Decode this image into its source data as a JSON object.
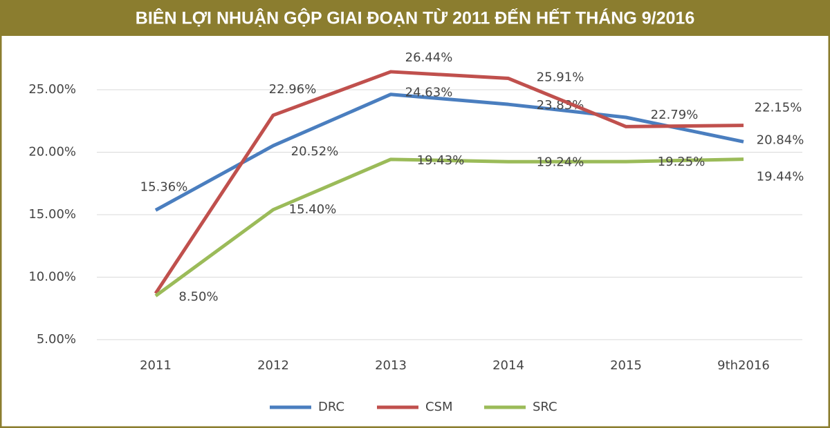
{
  "chart_data": {
    "type": "line",
    "title": "BIÊN LỢI NHUẬN GỘP GIAI ĐOẠN TỪ 2011 ĐẾN HẾT THÁNG 9/2016",
    "categories": [
      "2011",
      "2012",
      "2013",
      "2014",
      "2015",
      "9th2016"
    ],
    "series": [
      {
        "name": "DRC",
        "color": "#4a7ebf",
        "values": [
          15.36,
          20.52,
          24.63,
          23.83,
          22.79,
          20.84
        ],
        "value_labels": [
          "15.36%",
          "20.52%",
          "24.63%",
          "23.83%",
          "22.79%",
          "20.84%"
        ]
      },
      {
        "name": "CSM",
        "color": "#c0504d",
        "values": [
          8.7,
          22.96,
          26.44,
          25.91,
          22.05,
          22.15
        ],
        "value_labels": [
          null,
          "22.96%",
          "26.44%",
          "25.91%",
          null,
          "22.15%"
        ]
      },
      {
        "name": "SRC",
        "color": "#9bbb59",
        "values": [
          8.5,
          15.4,
          19.43,
          19.24,
          19.25,
          19.44
        ],
        "value_labels": [
          "8.50%",
          "15.40%",
          "19.43%",
          "19.24%",
          "19.25%",
          "19.44%"
        ]
      }
    ],
    "ylim": [
      5,
      29
    ],
    "yticks": [
      {
        "value": 5,
        "label": "5.00%"
      },
      {
        "value": 10,
        "label": "10.00%"
      },
      {
        "value": 15,
        "label": "15.00%"
      },
      {
        "value": 20,
        "label": "20.00%"
      },
      {
        "value": 25,
        "label": "25.00%"
      }
    ],
    "grid": true,
    "legend": "bottom"
  }
}
